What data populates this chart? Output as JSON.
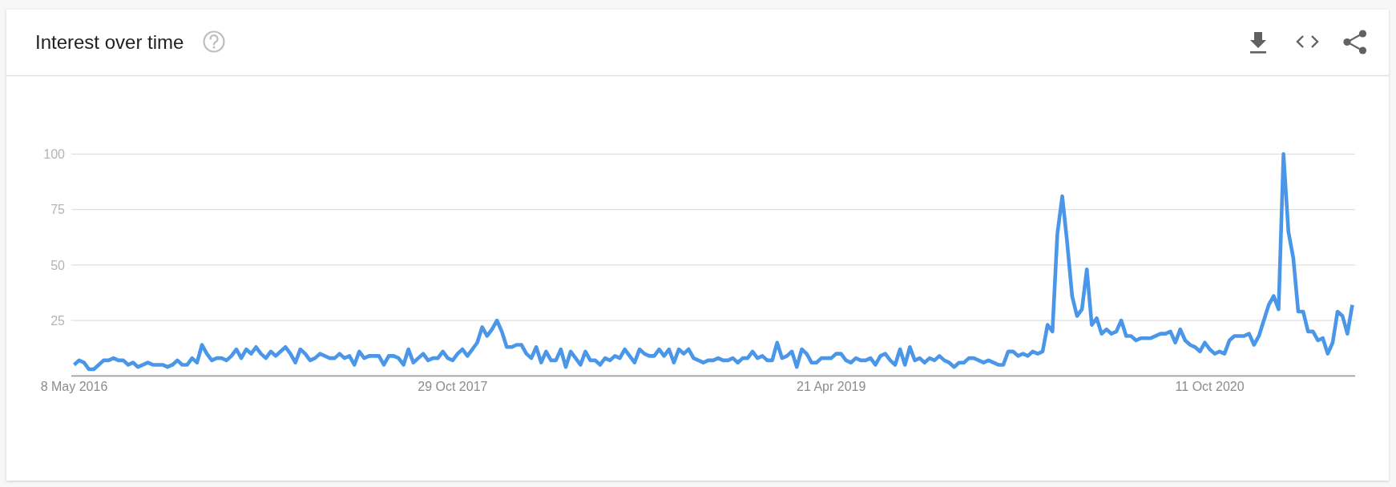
{
  "chart_data": {
    "type": "line",
    "title": "Interest over time",
    "x": [
      "2016-05-08",
      "2016-05-15",
      "2016-05-22",
      "2016-05-29",
      "2016-06-05",
      "2016-06-12",
      "2016-06-19",
      "2016-06-26",
      "2016-07-03",
      "2016-07-10",
      "2016-07-17",
      "2016-07-24",
      "2016-07-31",
      "2016-08-07",
      "2016-08-14",
      "2016-08-21",
      "2016-08-28",
      "2016-09-04",
      "2016-09-11",
      "2016-09-18",
      "2016-09-25",
      "2016-10-02",
      "2016-10-09",
      "2016-10-16",
      "2016-10-23",
      "2016-10-30",
      "2016-11-06",
      "2016-11-13",
      "2016-11-20",
      "2016-11-27",
      "2016-12-04",
      "2016-12-11",
      "2016-12-18",
      "2016-12-25",
      "2017-01-01",
      "2017-01-08",
      "2017-01-15",
      "2017-01-22",
      "2017-01-29",
      "2017-02-05",
      "2017-02-12",
      "2017-02-19",
      "2017-02-26",
      "2017-03-05",
      "2017-03-12",
      "2017-03-19",
      "2017-03-26",
      "2017-04-02",
      "2017-04-09",
      "2017-04-16",
      "2017-04-23",
      "2017-04-30",
      "2017-05-07",
      "2017-05-14",
      "2017-05-21",
      "2017-05-28",
      "2017-06-04",
      "2017-06-11",
      "2017-06-18",
      "2017-06-25",
      "2017-07-02",
      "2017-07-09",
      "2017-07-16",
      "2017-07-23",
      "2017-07-30",
      "2017-08-06",
      "2017-08-13",
      "2017-08-20",
      "2017-08-27",
      "2017-09-03",
      "2017-09-10",
      "2017-09-17",
      "2017-09-24",
      "2017-10-01",
      "2017-10-08",
      "2017-10-15",
      "2017-10-22",
      "2017-10-29",
      "2017-11-05",
      "2017-11-12",
      "2017-11-19",
      "2017-11-26",
      "2017-12-03",
      "2017-12-10",
      "2017-12-17",
      "2017-12-24",
      "2017-12-31",
      "2018-01-07",
      "2018-01-14",
      "2018-01-21",
      "2018-01-28",
      "2018-02-04",
      "2018-02-11",
      "2018-02-18",
      "2018-02-25",
      "2018-03-04",
      "2018-03-11",
      "2018-03-18",
      "2018-03-25",
      "2018-04-01",
      "2018-04-08",
      "2018-04-15",
      "2018-04-22",
      "2018-04-29",
      "2018-05-06",
      "2018-05-13",
      "2018-05-20",
      "2018-05-27",
      "2018-06-03",
      "2018-06-10",
      "2018-06-17",
      "2018-06-24",
      "2018-07-01",
      "2018-07-08",
      "2018-07-15",
      "2018-07-22",
      "2018-07-29",
      "2018-08-05",
      "2018-08-12",
      "2018-08-19",
      "2018-08-26",
      "2018-09-02",
      "2018-09-09",
      "2018-09-16",
      "2018-09-23",
      "2018-09-30",
      "2018-10-07",
      "2018-10-14",
      "2018-10-21",
      "2018-10-28",
      "2018-11-04",
      "2018-11-11",
      "2018-11-18",
      "2018-11-25",
      "2018-12-02",
      "2018-12-09",
      "2018-12-16",
      "2018-12-23",
      "2018-12-30",
      "2019-01-06",
      "2019-01-13",
      "2019-01-20",
      "2019-01-27",
      "2019-02-03",
      "2019-02-10",
      "2019-02-17",
      "2019-02-24",
      "2019-03-03",
      "2019-03-10",
      "2019-03-17",
      "2019-03-24",
      "2019-03-31",
      "2019-04-07",
      "2019-04-14",
      "2019-04-21",
      "2019-04-28",
      "2019-05-05",
      "2019-05-12",
      "2019-05-19",
      "2019-05-26",
      "2019-06-02",
      "2019-06-09",
      "2019-06-16",
      "2019-06-23",
      "2019-06-30",
      "2019-07-07",
      "2019-07-14",
      "2019-07-21",
      "2019-07-28",
      "2019-08-04",
      "2019-08-11",
      "2019-08-18",
      "2019-08-25",
      "2019-09-01",
      "2019-09-08",
      "2019-09-15",
      "2019-09-22",
      "2019-09-29",
      "2019-10-06",
      "2019-10-13",
      "2019-10-20",
      "2019-10-27",
      "2019-11-03",
      "2019-11-10",
      "2019-11-17",
      "2019-11-24",
      "2019-12-01",
      "2019-12-08",
      "2019-12-15",
      "2019-12-22",
      "2019-12-29",
      "2020-01-05",
      "2020-01-12",
      "2020-01-19",
      "2020-01-26",
      "2020-02-02",
      "2020-02-09",
      "2020-02-16",
      "2020-02-23",
      "2020-03-01",
      "2020-03-08",
      "2020-03-15",
      "2020-03-22",
      "2020-03-29",
      "2020-04-05",
      "2020-04-12",
      "2020-04-19",
      "2020-04-26",
      "2020-05-03",
      "2020-05-10",
      "2020-05-17",
      "2020-05-24",
      "2020-05-31",
      "2020-06-07",
      "2020-06-14",
      "2020-06-21",
      "2020-06-28",
      "2020-07-05",
      "2020-07-12",
      "2020-07-19",
      "2020-07-26",
      "2020-08-02",
      "2020-08-09",
      "2020-08-16",
      "2020-08-23",
      "2020-08-30",
      "2020-09-06",
      "2020-09-13",
      "2020-09-20",
      "2020-09-27",
      "2020-10-04",
      "2020-10-11",
      "2020-10-18",
      "2020-10-25",
      "2020-11-01",
      "2020-11-08",
      "2020-11-15",
      "2020-11-22",
      "2020-11-29",
      "2020-12-06",
      "2020-12-13",
      "2020-12-20",
      "2020-12-27",
      "2021-01-03",
      "2021-01-10",
      "2021-01-17",
      "2021-01-24",
      "2021-01-31",
      "2021-02-07",
      "2021-02-14",
      "2021-02-21",
      "2021-02-28",
      "2021-03-07",
      "2021-03-14",
      "2021-03-21",
      "2021-03-28",
      "2021-04-04",
      "2021-04-11",
      "2021-04-18",
      "2021-04-25",
      "2021-05-02"
    ],
    "series": [
      {
        "color": "#4a96e8",
        "values": [
          5,
          7,
          6,
          3,
          3,
          5,
          7,
          7,
          8,
          7,
          7,
          5,
          6,
          4,
          5,
          6,
          5,
          5,
          5,
          4,
          5,
          7,
          5,
          5,
          8,
          6,
          14,
          10,
          7,
          8,
          8,
          7,
          9,
          12,
          8,
          12,
          10,
          13,
          10,
          8,
          11,
          9,
          11,
          13,
          10,
          6,
          12,
          10,
          7,
          8,
          10,
          9,
          8,
          8,
          10,
          8,
          9,
          5,
          11,
          8,
          9,
          9,
          9,
          5,
          9,
          9,
          8,
          5,
          12,
          6,
          8,
          10,
          7,
          8,
          8,
          11,
          8,
          7,
          10,
          12,
          9,
          12,
          15,
          22,
          18,
          21,
          25,
          20,
          13,
          13,
          14,
          14,
          10,
          8,
          13,
          6,
          11,
          7,
          7,
          12,
          4,
          11,
          8,
          5,
          11,
          7,
          7,
          5,
          8,
          7,
          9,
          8,
          12,
          9,
          6,
          12,
          10,
          9,
          9,
          12,
          9,
          12,
          6,
          12,
          10,
          12,
          8,
          7,
          6,
          7,
          7,
          8,
          7,
          7,
          8,
          6,
          8,
          8,
          11,
          8,
          9,
          7,
          7,
          15,
          8,
          9,
          11,
          4,
          12,
          10,
          6,
          6,
          8,
          8,
          8,
          10,
          10,
          7,
          6,
          8,
          7,
          7,
          8,
          5,
          9,
          10,
          7,
          5,
          12,
          5,
          13,
          7,
          8,
          6,
          8,
          7,
          9,
          7,
          6,
          4,
          6,
          6,
          8,
          8,
          7,
          6,
          7,
          6,
          5,
          5,
          11,
          11,
          9,
          10,
          9,
          11,
          10,
          11,
          23,
          20,
          64,
          81,
          60,
          36,
          27,
          30,
          48,
          23,
          26,
          19,
          21,
          19,
          20,
          25,
          18,
          18,
          16,
          17,
          17,
          17,
          18,
          19,
          19,
          20,
          15,
          21,
          16,
          14,
          13,
          11,
          15,
          12,
          10,
          11,
          10,
          16,
          18,
          18,
          18,
          19,
          14,
          18,
          25,
          32,
          36,
          30,
          100,
          65,
          53,
          29,
          29,
          20,
          20,
          16,
          17,
          10,
          15,
          29,
          27,
          19,
          32
        ]
      }
    ],
    "xlim": [
      "2016-05-04",
      "2021-05-06"
    ],
    "xticks": [
      {
        "value": "2016-05-08",
        "label": "8 May 2016"
      },
      {
        "value": "2017-10-29",
        "label": "29 Oct 2017"
      },
      {
        "value": "2019-04-21",
        "label": "21 Apr 2019"
      },
      {
        "value": "2020-10-11",
        "label": "11 Oct 2020"
      }
    ],
    "ylim": [
      0,
      100
    ],
    "yticks": [
      25,
      50,
      75,
      100
    ],
    "grid": "y"
  }
}
